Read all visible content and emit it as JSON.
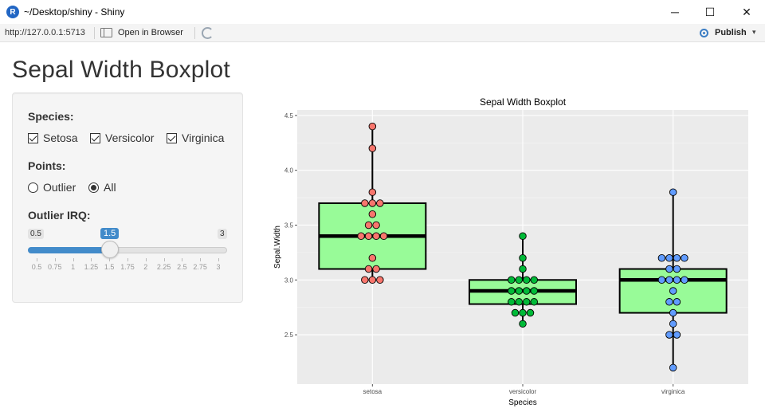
{
  "window": {
    "title": "~/Desktop/shiny - Shiny",
    "app_icon": "R",
    "minimize_glyph": "─",
    "maximize_glyph": "☐",
    "close_glyph": "✕"
  },
  "toolbar": {
    "url": "http://127.0.0.1:5713",
    "open_in_browser": "Open in Browser",
    "publish": "Publish",
    "publish_caret": "▾",
    "icons": [
      "open-in-browser-icon",
      "refresh-icon",
      "publish-icon"
    ]
  },
  "page": {
    "title": "Sepal Width Boxplot"
  },
  "controls": {
    "species_label": "Species:",
    "species_options": [
      {
        "label": "Setosa",
        "checked": true
      },
      {
        "label": "Versicolor",
        "checked": true
      },
      {
        "label": "Virginica",
        "checked": true
      }
    ],
    "points_label": "Points:",
    "points_options": [
      {
        "label": "Outlier",
        "selected": false
      },
      {
        "label": "All",
        "selected": true
      }
    ],
    "irq_label": "Outlier IRQ:",
    "slider": {
      "min": "0.5",
      "max": "3",
      "value": "1.5",
      "ticks": [
        "0.5",
        "0.75",
        "1",
        "1.25",
        "1.5",
        "1.75",
        "2",
        "2.25",
        "2.5",
        "2.75",
        "3"
      ]
    }
  },
  "chart_data": {
    "type": "box",
    "title": "Sepal Width Boxplot",
    "xlabel": "Species",
    "ylabel": "Sepal.Width",
    "categories": [
      "setosa",
      "versicolor",
      "virginica"
    ],
    "ylim": [
      2.05,
      4.55
    ],
    "yticks": [
      2.5,
      3.0,
      3.5,
      4.0,
      4.5
    ],
    "ytick_labels": [
      "2.5",
      "3.0",
      "3.5",
      "4.0",
      "4.5"
    ],
    "grid": true,
    "box_fill": "#98fb98",
    "panel_bg": "#ebebeb",
    "boxes": [
      {
        "category": "setosa",
        "q1": 3.1,
        "median": 3.4,
        "q3": 3.7,
        "whisker_low": 3.0,
        "whisker_high": 4.4
      },
      {
        "category": "versicolor",
        "q1": 2.78,
        "median": 2.9,
        "q3": 3.0,
        "whisker_low": 2.6,
        "whisker_high": 3.4
      },
      {
        "category": "virginica",
        "q1": 2.7,
        "median": 3.0,
        "q3": 3.1,
        "whisker_low": 2.2,
        "whisker_high": 3.8
      }
    ],
    "series": [
      {
        "category": "setosa",
        "color": "#f8766d",
        "points": [
          {
            "y": 4.4,
            "n": 1
          },
          {
            "y": 4.2,
            "n": 1
          },
          {
            "y": 3.8,
            "n": 1
          },
          {
            "y": 3.7,
            "n": 3
          },
          {
            "y": 3.6,
            "n": 1
          },
          {
            "y": 3.5,
            "n": 2
          },
          {
            "y": 3.4,
            "n": 4
          },
          {
            "y": 3.2,
            "n": 1
          },
          {
            "y": 3.1,
            "n": 2
          },
          {
            "y": 3.0,
            "n": 3
          }
        ]
      },
      {
        "category": "versicolor",
        "color": "#00ba38",
        "points": [
          {
            "y": 3.4,
            "n": 1
          },
          {
            "y": 3.2,
            "n": 1
          },
          {
            "y": 3.1,
            "n": 1
          },
          {
            "y": 3.0,
            "n": 4
          },
          {
            "y": 2.9,
            "n": 4
          },
          {
            "y": 2.8,
            "n": 4
          },
          {
            "y": 2.7,
            "n": 3
          },
          {
            "y": 2.6,
            "n": 1
          }
        ]
      },
      {
        "category": "virginica",
        "color": "#619cff",
        "points": [
          {
            "y": 3.8,
            "n": 1
          },
          {
            "y": 3.2,
            "n": 4
          },
          {
            "y": 3.1,
            "n": 2
          },
          {
            "y": 3.0,
            "n": 4
          },
          {
            "y": 2.9,
            "n": 1
          },
          {
            "y": 2.8,
            "n": 2
          },
          {
            "y": 2.7,
            "n": 1
          },
          {
            "y": 2.6,
            "n": 1
          },
          {
            "y": 2.5,
            "n": 2
          },
          {
            "y": 2.2,
            "n": 1
          }
        ]
      }
    ]
  }
}
